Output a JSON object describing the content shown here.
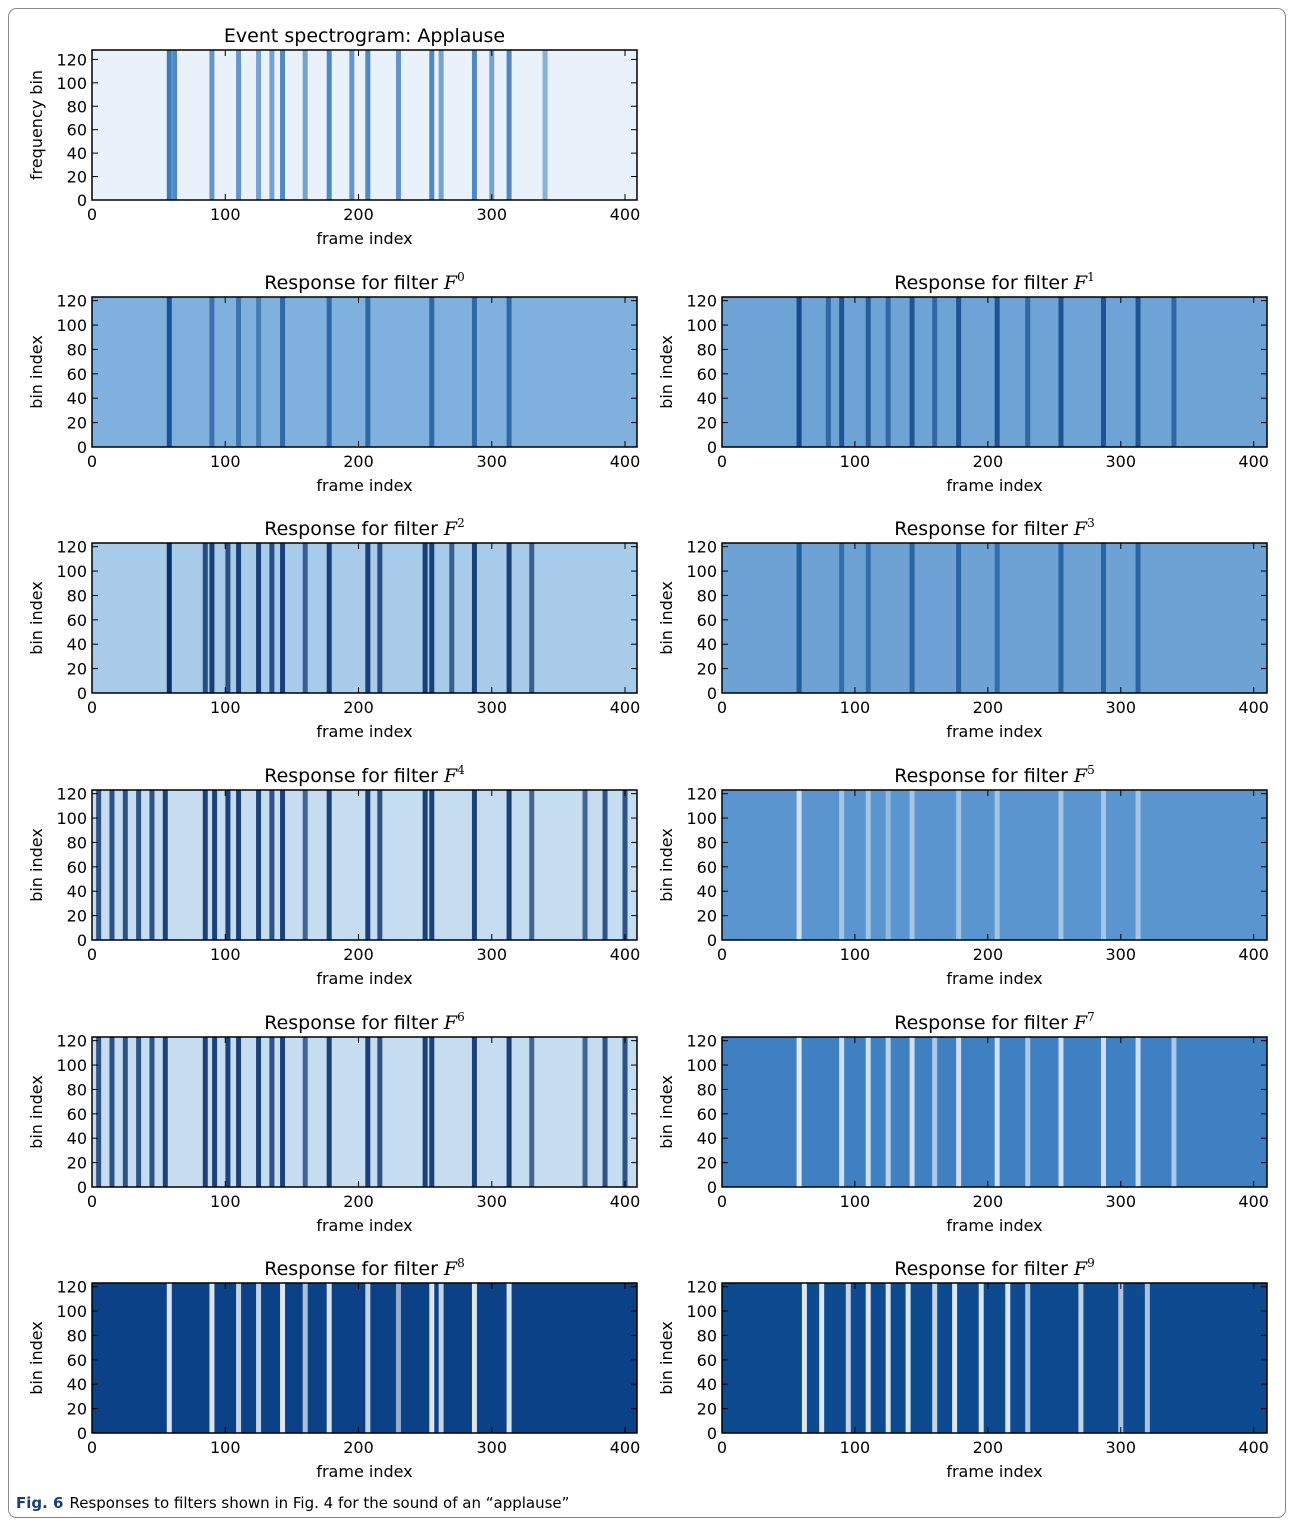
{
  "chart_data": [
    {
      "type": "heatmap",
      "title": "Event spectrogram: Applause",
      "xlabel": "frame index",
      "ylabel": "frequency bin",
      "xlim": [
        0,
        409
      ],
      "ylim": [
        0,
        128
      ],
      "xticks": [
        0,
        100,
        200,
        300,
        400
      ],
      "yticks": [
        0,
        20,
        40,
        60,
        80,
        100,
        120
      ],
      "colors": {
        "background": "#e9f2fb",
        "stripe": "#2a6db3"
      },
      "x": [
        58,
        62,
        90,
        110,
        125,
        135,
        143,
        160,
        178,
        195,
        207,
        230,
        255,
        262,
        287,
        300,
        313,
        340
      ],
      "values": [
        0.9,
        0.8,
        0.7,
        0.7,
        0.6,
        0.6,
        0.8,
        0.6,
        0.8,
        0.7,
        0.8,
        0.7,
        0.8,
        0.6,
        0.8,
        0.6,
        0.8,
        0.5
      ]
    },
    {
      "type": "heatmap",
      "title": "Response for filter",
      "title_symbol": "F",
      "title_superscript": "0",
      "xlabel": "frame index",
      "ylabel": "bin index",
      "xlim": [
        0,
        409
      ],
      "ylim": [
        0,
        123
      ],
      "xticks": [
        0,
        100,
        200,
        300,
        400
      ],
      "yticks": [
        0,
        20,
        40,
        60,
        80,
        100,
        120
      ],
      "colors": {
        "background": "#7fb0de",
        "stripe": "#0d4a8f"
      },
      "x": [
        58,
        90,
        110,
        125,
        143,
        178,
        207,
        255,
        287,
        313
      ],
      "values": [
        0.9,
        0.6,
        0.6,
        0.5,
        0.7,
        0.7,
        0.7,
        0.7,
        0.7,
        0.7
      ]
    },
    {
      "type": "heatmap",
      "title": "Response for filter",
      "title_symbol": "F",
      "title_superscript": "1",
      "xlabel": "frame index",
      "ylabel": "bin index",
      "xlim": [
        0,
        410
      ],
      "ylim": [
        0,
        123
      ],
      "xticks": [
        0,
        100,
        200,
        300,
        400
      ],
      "yticks": [
        0,
        20,
        40,
        60,
        80,
        100,
        120
      ],
      "colors": {
        "background": "#6fa3d6",
        "stripe": "#0b3f80"
      },
      "x": [
        58,
        80,
        90,
        110,
        125,
        143,
        160,
        178,
        207,
        230,
        255,
        287,
        313,
        340
      ],
      "values": [
        0.9,
        0.6,
        0.8,
        0.7,
        0.6,
        0.8,
        0.6,
        0.8,
        0.8,
        0.6,
        0.8,
        0.8,
        0.8,
        0.6
      ]
    },
    {
      "type": "heatmap",
      "title": "Response for filter",
      "title_symbol": "F",
      "title_superscript": "2",
      "xlabel": "frame index",
      "ylabel": "bin index",
      "xlim": [
        0,
        409
      ],
      "ylim": [
        0,
        123
      ],
      "xticks": [
        0,
        100,
        200,
        300,
        400
      ],
      "yticks": [
        0,
        20,
        40,
        60,
        80,
        100,
        120
      ],
      "colors": {
        "background": "#a9cbea",
        "stripe": "#08306b"
      },
      "x": [
        58,
        85,
        90,
        102,
        110,
        125,
        135,
        143,
        160,
        178,
        207,
        216,
        250,
        255,
        270,
        287,
        313,
        330
      ],
      "values": [
        1,
        0.8,
        0.9,
        0.8,
        0.9,
        0.9,
        0.8,
        0.9,
        0.7,
        0.9,
        0.9,
        0.8,
        0.9,
        0.9,
        0.7,
        0.9,
        0.9,
        0.7
      ]
    },
    {
      "type": "heatmap",
      "title": "Response for filter",
      "title_symbol": "F",
      "title_superscript": "3",
      "xlabel": "frame index",
      "ylabel": "bin index",
      "xlim": [
        0,
        410
      ],
      "ylim": [
        0,
        123
      ],
      "xticks": [
        0,
        100,
        200,
        300,
        400
      ],
      "yticks": [
        0,
        20,
        40,
        60,
        80,
        100,
        120
      ],
      "colors": {
        "background": "#6ea2d5",
        "stripe": "#0d4a8f"
      },
      "x": [
        58,
        90,
        110,
        143,
        178,
        207,
        255,
        287,
        313
      ],
      "values": [
        0.8,
        0.6,
        0.6,
        0.7,
        0.7,
        0.6,
        0.7,
        0.7,
        0.7
      ]
    },
    {
      "type": "heatmap",
      "title": "Response for filter",
      "title_symbol": "F",
      "title_superscript": "4",
      "xlabel": "frame index",
      "ylabel": "bin index",
      "xlim": [
        0,
        409
      ],
      "ylim": [
        0,
        123
      ],
      "xticks": [
        0,
        100,
        200,
        300,
        400
      ],
      "yticks": [
        0,
        20,
        40,
        60,
        80,
        100,
        120
      ],
      "colors": {
        "background": "#c6dcf0",
        "stripe": "#08306b"
      },
      "x": [
        5,
        15,
        25,
        35,
        45,
        55,
        85,
        92,
        102,
        110,
        125,
        135,
        143,
        160,
        178,
        207,
        216,
        250,
        255,
        287,
        313,
        330,
        370,
        385,
        400
      ],
      "values": [
        0.8,
        0.8,
        0.8,
        0.8,
        0.8,
        0.9,
        0.9,
        0.9,
        0.9,
        0.9,
        0.9,
        0.8,
        0.9,
        0.7,
        0.9,
        0.9,
        0.8,
        0.9,
        0.9,
        0.9,
        0.9,
        0.7,
        0.7,
        0.8,
        0.8
      ]
    },
    {
      "type": "heatmap",
      "title": "Response for filter",
      "title_symbol": "F",
      "title_superscript": "5",
      "xlabel": "frame index",
      "ylabel": "bin index",
      "xlim": [
        0,
        410
      ],
      "ylim": [
        0,
        123
      ],
      "xticks": [
        0,
        100,
        200,
        300,
        400
      ],
      "yticks": [
        0,
        20,
        40,
        60,
        80,
        100,
        120
      ],
      "colors": {
        "background": "#5b95cf",
        "stripe": "#eef5fc"
      },
      "x": [
        58,
        90,
        110,
        125,
        143,
        178,
        207,
        255,
        287,
        313
      ],
      "values": [
        0.8,
        0.5,
        0.5,
        0.4,
        0.5,
        0.5,
        0.5,
        0.5,
        0.5,
        0.5
      ]
    },
    {
      "type": "heatmap",
      "title": "Response for filter",
      "title_symbol": "F",
      "title_superscript": "6",
      "xlabel": "frame index",
      "ylabel": "bin index",
      "xlim": [
        0,
        409
      ],
      "ylim": [
        0,
        123
      ],
      "xticks": [
        0,
        100,
        200,
        300,
        400
      ],
      "yticks": [
        0,
        20,
        40,
        60,
        80,
        100,
        120
      ],
      "colors": {
        "background": "#c6dcf0",
        "stripe": "#08306b"
      },
      "x": [
        5,
        15,
        25,
        35,
        45,
        55,
        85,
        92,
        102,
        110,
        125,
        135,
        143,
        160,
        178,
        207,
        216,
        250,
        255,
        287,
        313,
        330,
        370,
        385,
        400
      ],
      "values": [
        0.8,
        0.8,
        0.8,
        0.8,
        0.8,
        0.9,
        0.9,
        0.9,
        0.9,
        0.9,
        0.9,
        0.8,
        0.9,
        0.7,
        0.9,
        0.9,
        0.8,
        0.9,
        0.9,
        0.9,
        0.9,
        0.7,
        0.7,
        0.8,
        0.8
      ]
    },
    {
      "type": "heatmap",
      "title": "Response for filter",
      "title_symbol": "F",
      "title_superscript": "7",
      "xlabel": "frame index",
      "ylabel": "bin index",
      "xlim": [
        0,
        410
      ],
      "ylim": [
        0,
        123
      ],
      "xticks": [
        0,
        100,
        200,
        300,
        400
      ],
      "yticks": [
        0,
        20,
        40,
        60,
        80,
        100,
        120
      ],
      "colors": {
        "background": "#3f80c2",
        "stripe": "#f3f8fd"
      },
      "x": [
        58,
        90,
        110,
        125,
        143,
        160,
        178,
        207,
        230,
        255,
        287,
        313,
        340
      ],
      "values": [
        0.9,
        0.8,
        0.8,
        0.7,
        0.8,
        0.6,
        0.8,
        0.8,
        0.6,
        0.8,
        0.8,
        0.8,
        0.6
      ]
    },
    {
      "type": "heatmap",
      "title": "Response for filter",
      "title_symbol": "F",
      "title_superscript": "8",
      "xlabel": "frame index",
      "ylabel": "bin index",
      "xlim": [
        0,
        409
      ],
      "ylim": [
        0,
        123
      ],
      "xticks": [
        0,
        100,
        200,
        300,
        400
      ],
      "yticks": [
        0,
        20,
        40,
        60,
        80,
        100,
        120
      ],
      "colors": {
        "background": "#0b4186",
        "stripe": "#f3f8fd"
      },
      "x": [
        58,
        90,
        110,
        125,
        143,
        160,
        178,
        207,
        230,
        255,
        262,
        287,
        313
      ],
      "values": [
        0.9,
        0.9,
        0.8,
        0.8,
        0.9,
        0.7,
        0.9,
        0.8,
        0.6,
        0.9,
        0.8,
        0.9,
        0.9
      ]
    },
    {
      "type": "heatmap",
      "title": "Response for filter",
      "title_symbol": "F",
      "title_superscript": "9",
      "xlabel": "frame index",
      "ylabel": "bin index",
      "xlim": [
        0,
        410
      ],
      "ylim": [
        0,
        123
      ],
      "xticks": [
        0,
        100,
        200,
        300,
        400
      ],
      "yticks": [
        0,
        20,
        40,
        60,
        80,
        100,
        120
      ],
      "colors": {
        "background": "#0d4a8f",
        "stripe": "#f3f8fd"
      },
      "x": [
        62,
        75,
        95,
        110,
        125,
        140,
        160,
        175,
        195,
        215,
        230,
        270,
        300,
        320
      ],
      "values": [
        0.9,
        0.9,
        0.8,
        0.9,
        0.9,
        0.9,
        0.8,
        0.9,
        0.9,
        0.9,
        0.7,
        0.8,
        0.7,
        0.7
      ]
    }
  ],
  "caption": {
    "label": "Fig. 6",
    "text": "Responses to filters shown in Fig. 4 for the sound of an “applause”"
  }
}
